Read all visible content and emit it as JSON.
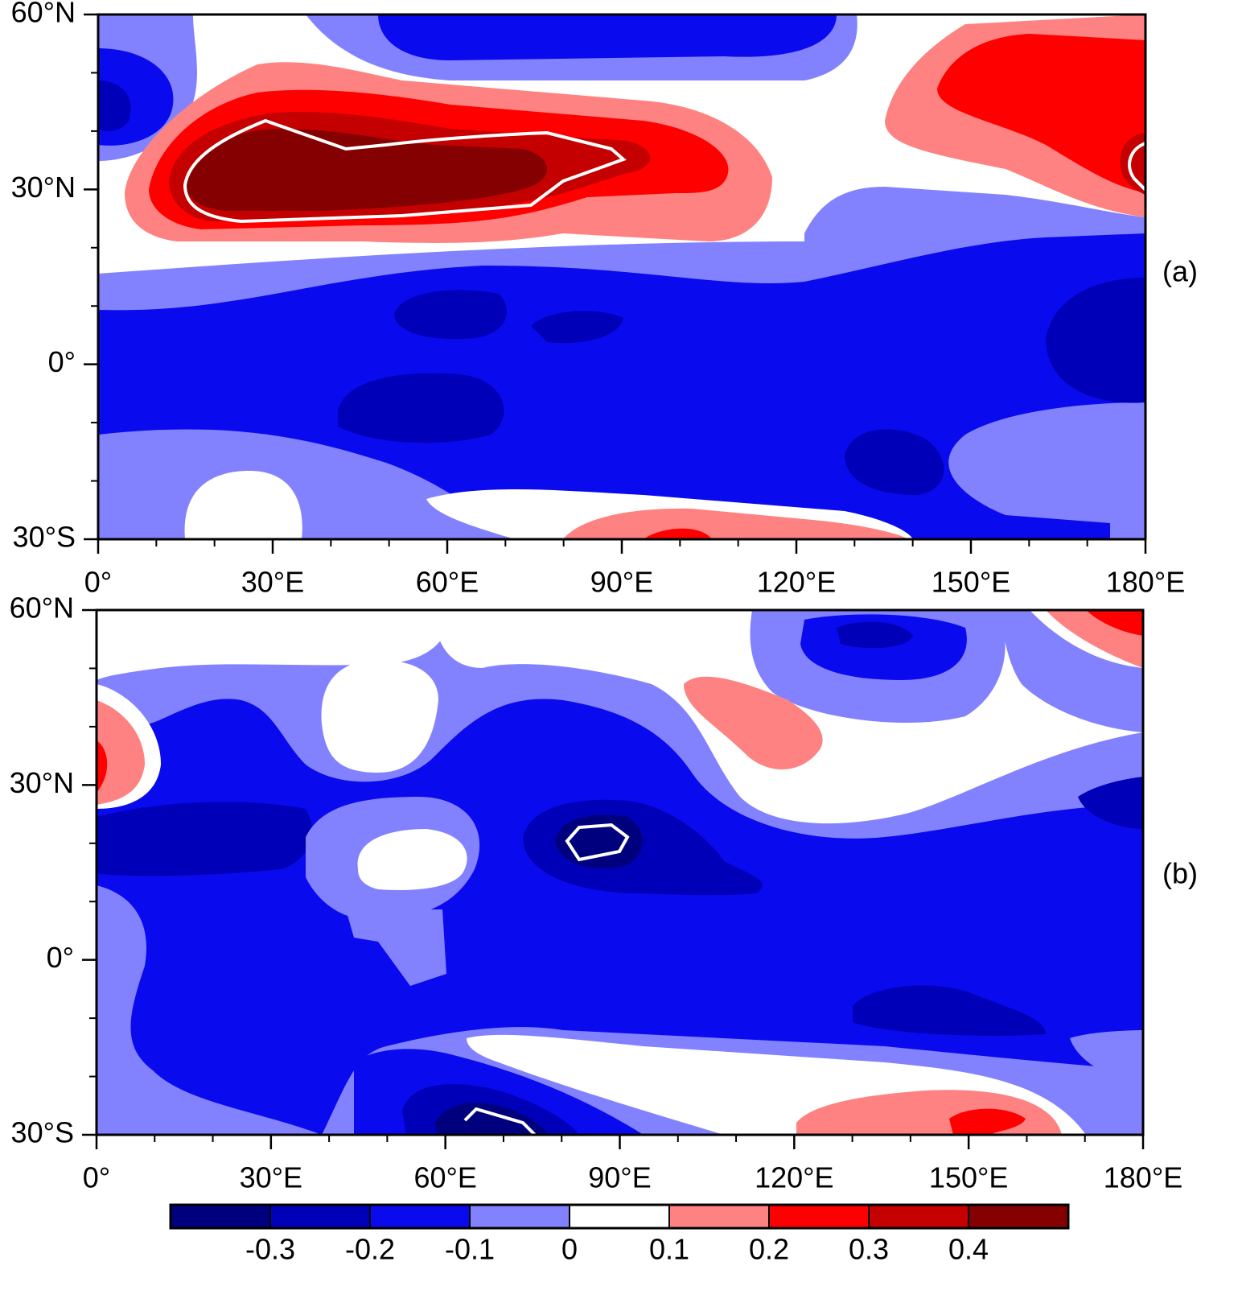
{
  "maps": [
    {
      "panel_label": "(a)"
    },
    {
      "panel_label": "(b)"
    }
  ],
  "xaxis": {
    "xlim": [
      0,
      180
    ],
    "xticks": [
      {
        "value": 0,
        "label": "0°"
      },
      {
        "value": 30,
        "label": "30°E"
      },
      {
        "value": 60,
        "label": "60°E"
      },
      {
        "value": 90,
        "label": "90°E"
      },
      {
        "value": 120,
        "label": "120°E"
      },
      {
        "value": 150,
        "label": "150°E"
      },
      {
        "value": 180,
        "label": "180°E"
      }
    ],
    "xminorticks": [
      10,
      20,
      40,
      50,
      70,
      80,
      100,
      110,
      130,
      140,
      160,
      170
    ]
  },
  "yaxis": {
    "ylim": [
      -30,
      60
    ],
    "yticks": [
      {
        "value": 60,
        "label": "60°N"
      },
      {
        "value": 30,
        "label": "30°N"
      },
      {
        "value": 0,
        "label": "0°"
      },
      {
        "value": -30,
        "label": "30°S"
      }
    ],
    "yminorticks": [
      50,
      40,
      20,
      10,
      -10,
      -20
    ]
  },
  "colorbar": {
    "levels": [
      -0.3,
      -0.2,
      -0.1,
      0,
      0.1,
      0.2,
      0.3,
      0.4
    ],
    "colors": [
      "#00007f",
      "#0000b8",
      "#0a0aee",
      "#8282ff",
      "#ffffff",
      "#ff8282",
      "#ff0000",
      "#c40000",
      "#850000"
    ]
  }
}
